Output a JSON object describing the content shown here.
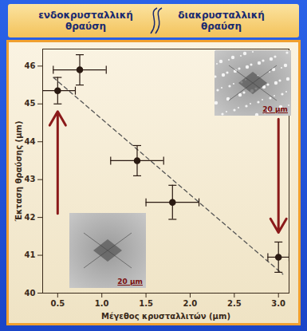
{
  "chart_data": {
    "type": "scatter",
    "annotations": {
      "left": "ενδοκρυσταλλική θραύση",
      "right": "διακρυσταλλική θραύση"
    },
    "inset_scale_bars": [
      "20 μm",
      "20 μm"
    ],
    "x_label": "Μέγεθος κρυσταλλιτών (μm)",
    "y_label": "Έκταση θραύσης (μm)",
    "x": [
      0.5,
      0.75,
      1.4,
      1.8,
      3.0
    ],
    "values": [
      45.35,
      45.9,
      43.5,
      42.4,
      40.95
    ],
    "x_error": [
      0.2,
      0.3,
      0.3,
      0.3,
      0.12
    ],
    "y_error": [
      0.35,
      0.4,
      0.4,
      0.45,
      0.4
    ],
    "color": "#2a1a12",
    "marker": "circle",
    "trend": {
      "x": [
        0.45,
        3.05
      ],
      "y": [
        45.7,
        40.5
      ],
      "line_style": "dashed",
      "color": "#555555"
    },
    "arrows": [
      {
        "x": 0.5,
        "y_from": 42.1,
        "y_to": 44.8
      },
      {
        "x": 3.0,
        "y_from": 44.6,
        "y_to": 41.6
      }
    ],
    "arrow_color": "#8b1a1a",
    "xlim": [
      0.33,
      3.12
    ],
    "ylim": [
      40,
      46.45
    ],
    "xticks": [
      0.5,
      {
        "value": 1,
        "label": "1.0"
      },
      1.5,
      {
        "value": 2,
        "label": "2.0"
      },
      2.5,
      {
        "value": 3,
        "label": "3.0"
      }
    ],
    "yticks": [
      40,
      41,
      42,
      43,
      44,
      45,
      46
    ],
    "grid": false
  }
}
